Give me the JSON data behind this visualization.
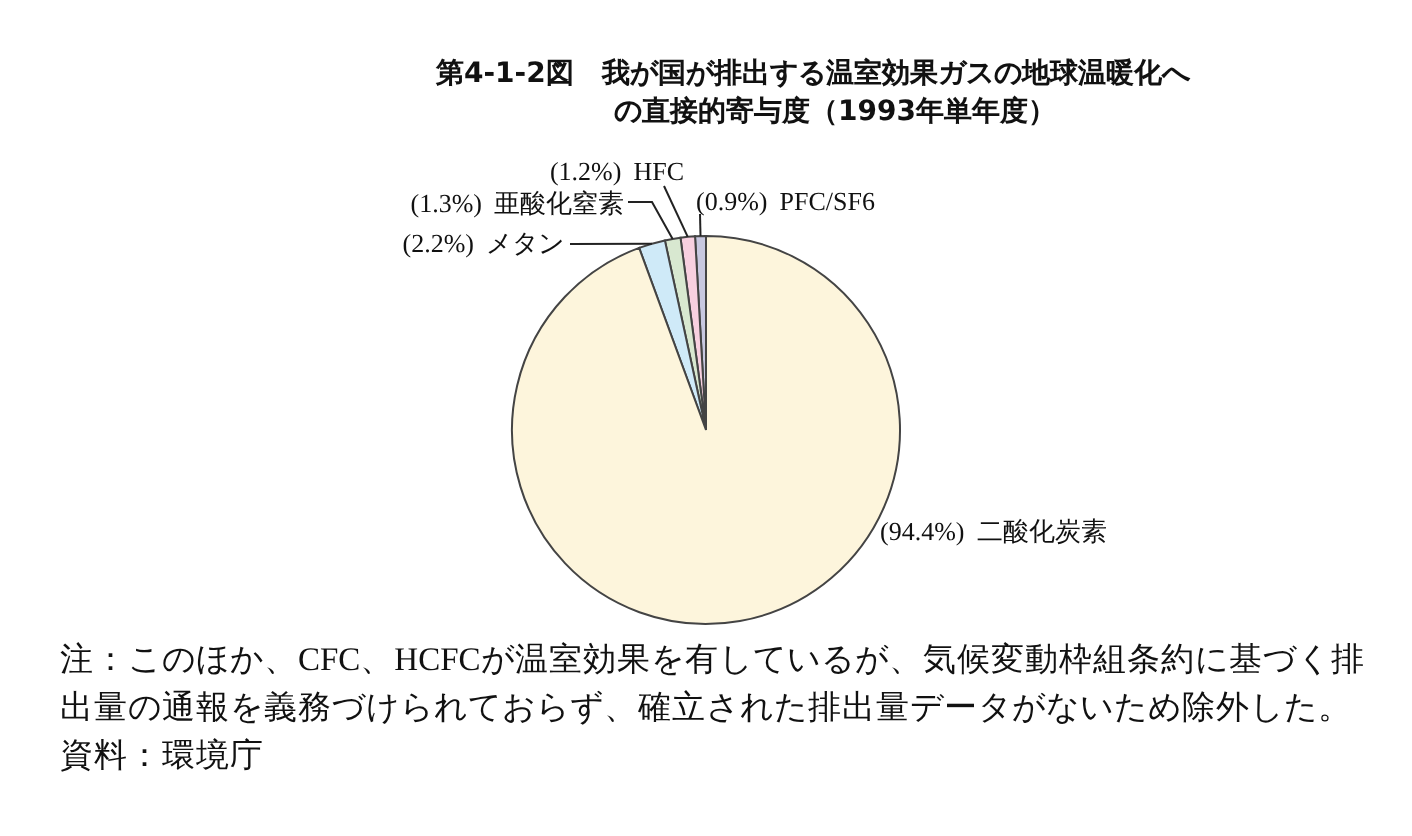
{
  "chart_data": {
    "type": "pie",
    "title": "第4-1-2図　我が国が排出する温室効果ガスの地球温暖化への直接的寄与度（1993年単年度）",
    "categories": [
      "PFC/SF6",
      "HFC",
      "亜酸化窒素",
      "メタン",
      "二酸化炭素"
    ],
    "values": [
      0.9,
      1.2,
      1.3,
      2.2,
      94.4
    ],
    "value_labels": [
      "(0.9%)",
      "(1.2%)",
      "(1.3%)",
      "(2.2%)",
      "(94.4%)"
    ],
    "colors": [
      "#c8c8e0",
      "#f8d0e0",
      "#d8e8d0",
      "#cfeaf8",
      "#fdf5dc"
    ],
    "legend": false,
    "annotations": [
      "注：このほか、CFC、HCFCが温室効果を有しているが、気候変動枠組条約に基づく排出量の通報を義務づけられておらず、確立された排出量データがないため除外した。",
      "資料：環境庁"
    ]
  }
}
